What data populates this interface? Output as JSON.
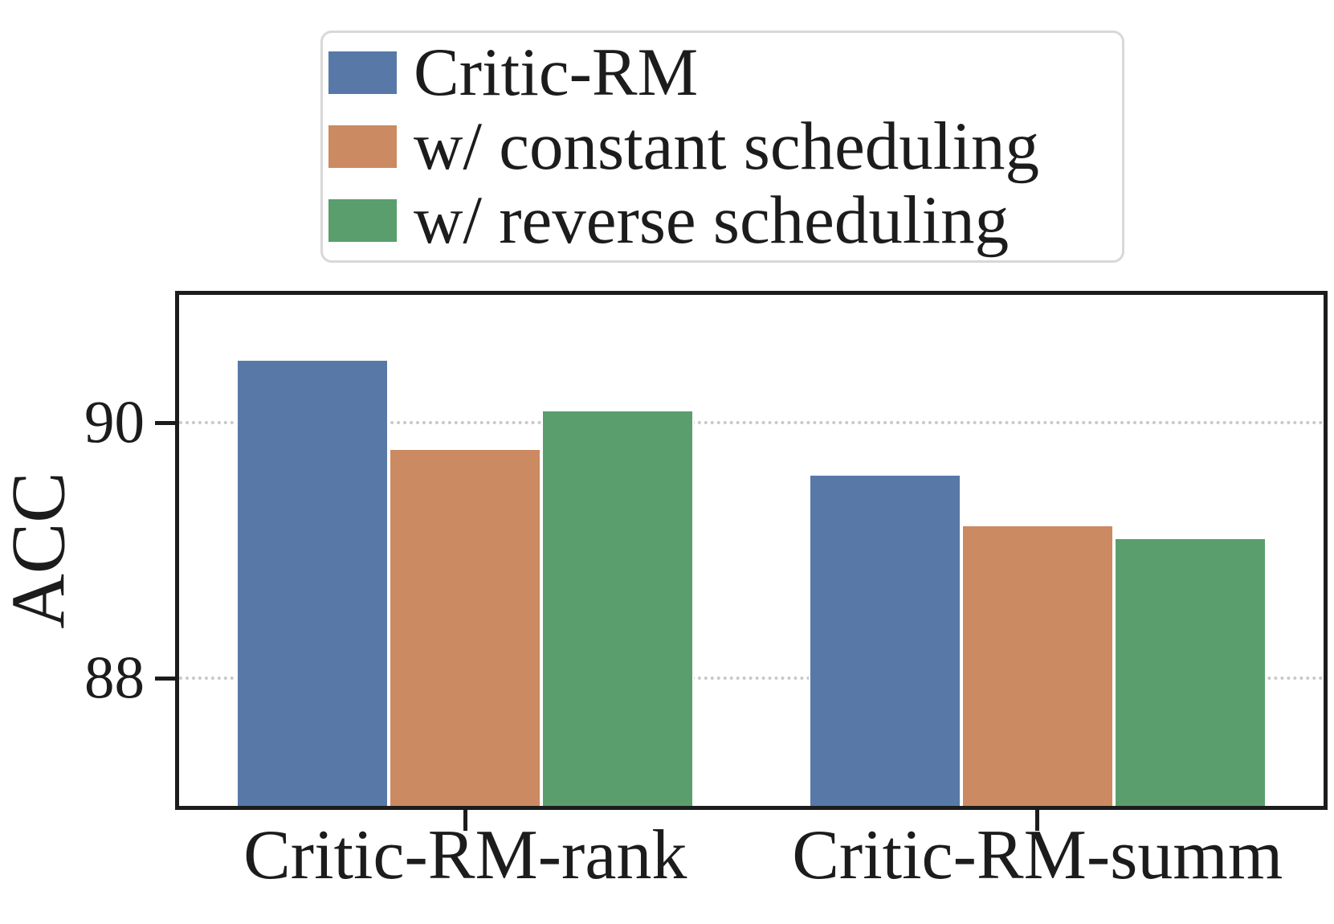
{
  "figure": {
    "background": "#ffffff",
    "text_color": "#1c1c1c"
  },
  "legend": {
    "items": [
      {
        "label": "Critic-RM",
        "color": "#5878A8"
      },
      {
        "label": "w/ constant scheduling",
        "color": "#CB8A61"
      },
      {
        "label": "w/ reverse scheduling",
        "color": "#5A9E6E"
      }
    ],
    "border_color": "#d8d8d8",
    "position": "top-center"
  },
  "chart_data": {
    "type": "bar",
    "categories": [
      "Critic-RM-rank",
      "Critic-RM-summ"
    ],
    "series": [
      {
        "name": "Critic-RM",
        "color": "#5878A8",
        "values": [
          90.5,
          89.6
        ]
      },
      {
        "name": "w/ constant scheduling",
        "color": "#CB8A61",
        "values": [
          89.8,
          89.2
        ]
      },
      {
        "name": "w/ reverse scheduling",
        "color": "#5A9E6E",
        "values": [
          90.1,
          89.1
        ]
      }
    ],
    "title": "",
    "xlabel": "",
    "ylabel": "ACC",
    "yticks": [
      88,
      90
    ],
    "ylim": [
      87,
      91
    ],
    "grid": "horizontal-dotted",
    "gridline_color": "#c9c9c9",
    "spine_color": "#1c1c1c",
    "legend_position": "above-plot"
  }
}
